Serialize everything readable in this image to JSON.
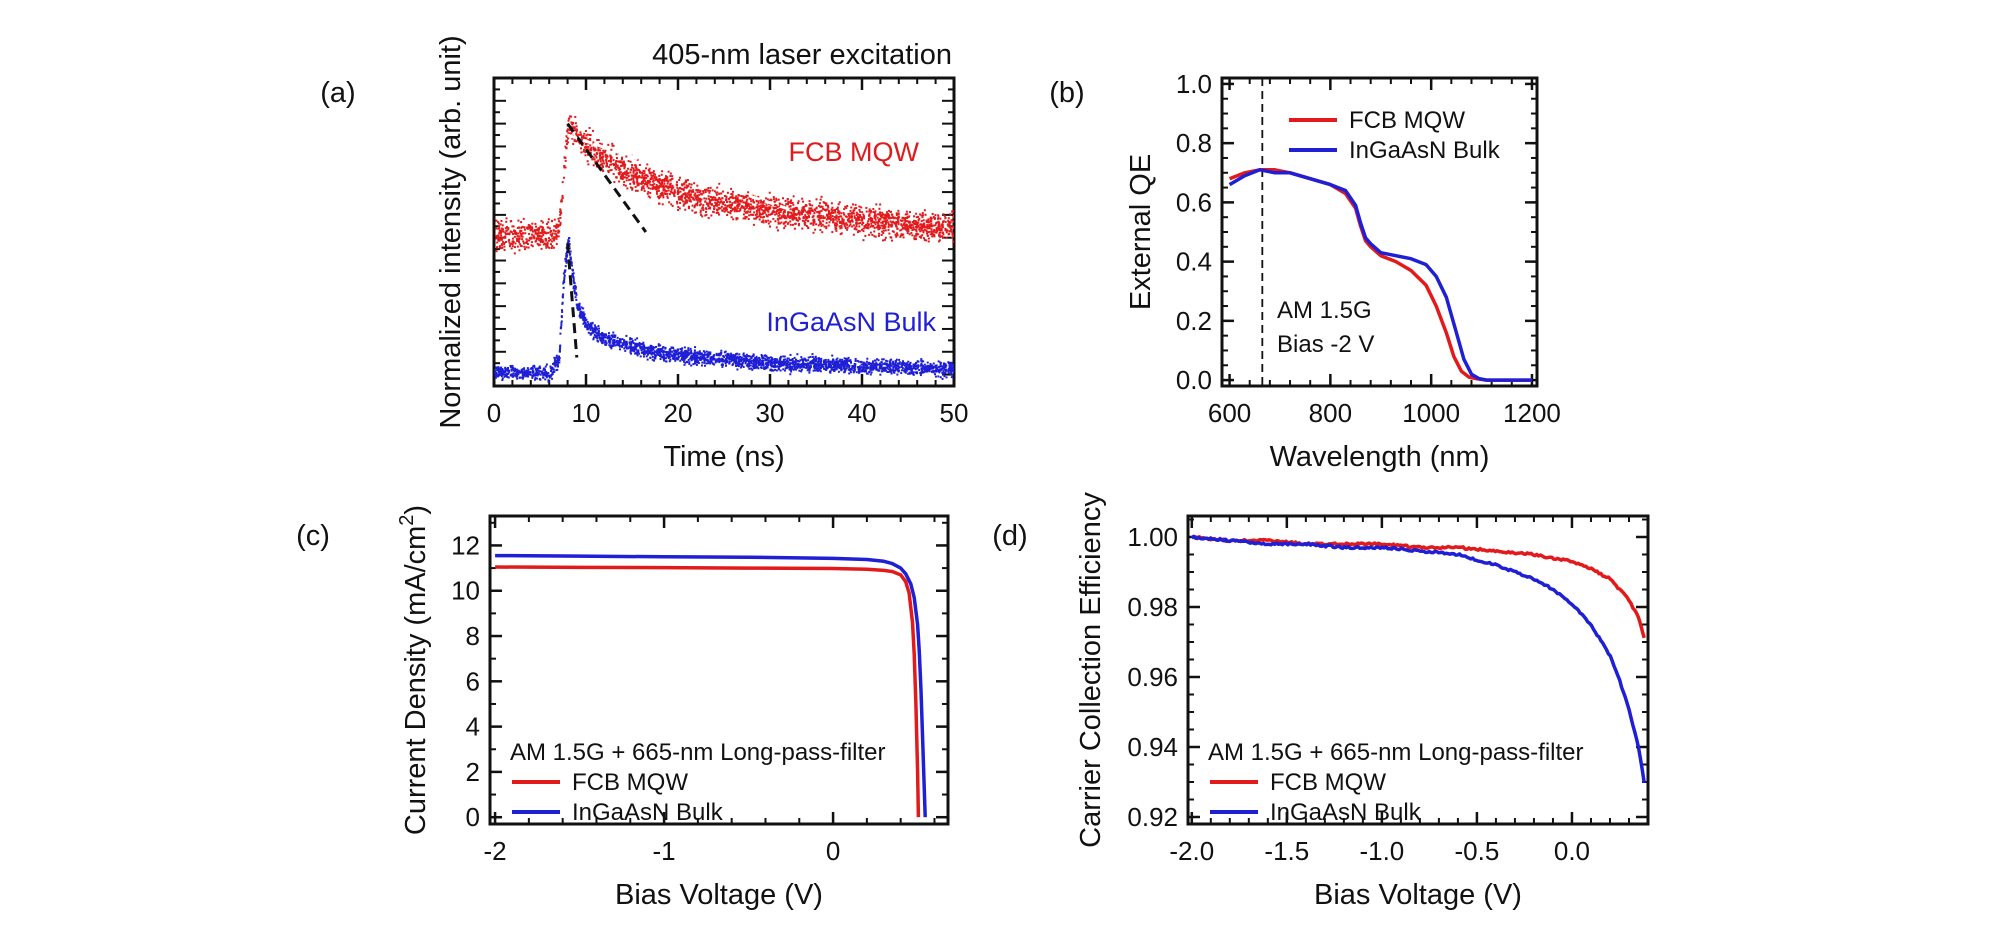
{
  "chart_data": [
    {
      "panel": "(a)",
      "type": "scatter",
      "title": "405-nm laser excitation",
      "xlabel": "Time (ns)",
      "ylabel": "Normalized intensity (arb. unit)",
      "xlim": [
        0,
        50
      ],
      "ylim": [
        0,
        1.08
      ],
      "xticks": [
        0,
        10,
        20,
        30,
        40,
        50
      ],
      "yticks_labeled": false,
      "grid": false,
      "series": [
        {
          "name": "FCB MQW",
          "color": "#e31a1c",
          "x": [
            0,
            2,
            4,
            6,
            7,
            7.5,
            8,
            8.5,
            9,
            10,
            11,
            12,
            14,
            16,
            18,
            20,
            22,
            24,
            26,
            28,
            30,
            32,
            35,
            38,
            41,
            44,
            47,
            50
          ],
          "y": [
            0.53,
            0.53,
            0.53,
            0.53,
            0.56,
            0.74,
            0.92,
            0.9,
            0.88,
            0.85,
            0.82,
            0.8,
            0.76,
            0.73,
            0.7,
            0.68,
            0.66,
            0.65,
            0.64,
            0.63,
            0.62,
            0.61,
            0.6,
            0.59,
            0.58,
            0.57,
            0.56,
            0.56
          ]
        },
        {
          "name": "InGaAsN Bulk",
          "color": "#1f1fd6",
          "x": [
            0,
            2,
            4,
            6,
            7,
            7.5,
            8,
            8.5,
            9,
            10,
            11,
            12,
            14,
            16,
            18,
            20,
            24,
            28,
            32,
            36,
            40,
            45,
            50
          ],
          "y": [
            0.05,
            0.05,
            0.05,
            0.05,
            0.1,
            0.38,
            0.52,
            0.38,
            0.28,
            0.22,
            0.19,
            0.17,
            0.15,
            0.13,
            0.12,
            0.11,
            0.1,
            0.09,
            0.08,
            0.08,
            0.07,
            0.07,
            0.06
          ]
        }
      ],
      "fits": [
        {
          "style": "dashed",
          "color": "#111111",
          "x": [
            8,
            16.5
          ],
          "y": [
            0.92,
            0.54
          ]
        },
        {
          "style": "dashed",
          "color": "#ffffff",
          "x": [
            8,
            33
          ],
          "y": [
            0.88,
            0.61
          ]
        },
        {
          "style": "dashed",
          "color": "#111111",
          "x": [
            8,
            9
          ],
          "y": [
            0.5,
            0.1
          ]
        }
      ]
    },
    {
      "panel": "(b)",
      "type": "line",
      "xlabel": "Wavelength (nm)",
      "ylabel": "External QE",
      "xlim": [
        585,
        1210
      ],
      "ylim": [
        -0.02,
        1.02
      ],
      "xticks": [
        600,
        800,
        1000,
        1200
      ],
      "yticks": [
        0.0,
        0.2,
        0.4,
        0.6,
        0.8,
        1.0
      ],
      "ytick_labels": [
        "0.0",
        "0.2",
        "0.4",
        "0.6",
        "0.8",
        "1.0"
      ],
      "grid": false,
      "legend": "top-right",
      "vline": 665,
      "annotations": [
        "AM 1.5G",
        "Bias -2 V"
      ],
      "series": [
        {
          "name": "FCB MQW",
          "color": "#e31a1c",
          "x": [
            600,
            630,
            660,
            690,
            720,
            760,
            800,
            830,
            850,
            860,
            870,
            880,
            900,
            930,
            960,
            990,
            1010,
            1030,
            1045,
            1060,
            1075,
            1090,
            1110,
            1150,
            1200
          ],
          "y": [
            0.68,
            0.7,
            0.71,
            0.71,
            0.7,
            0.68,
            0.66,
            0.63,
            0.58,
            0.52,
            0.47,
            0.45,
            0.42,
            0.4,
            0.37,
            0.32,
            0.25,
            0.16,
            0.08,
            0.03,
            0.01,
            0.005,
            0.0,
            0.0,
            0.0
          ]
        },
        {
          "name": "InGaAsN Bulk",
          "color": "#1f1fd6",
          "x": [
            600,
            630,
            660,
            690,
            720,
            760,
            800,
            830,
            850,
            860,
            870,
            880,
            900,
            930,
            960,
            990,
            1010,
            1030,
            1050,
            1065,
            1080,
            1095,
            1110,
            1150,
            1200
          ],
          "y": [
            0.66,
            0.69,
            0.71,
            0.7,
            0.7,
            0.68,
            0.66,
            0.64,
            0.59,
            0.53,
            0.48,
            0.46,
            0.43,
            0.42,
            0.41,
            0.39,
            0.35,
            0.28,
            0.16,
            0.07,
            0.02,
            0.005,
            0.0,
            0.0,
            0.0
          ]
        }
      ]
    },
    {
      "panel": "(c)",
      "type": "line",
      "xlabel": "Bias Voltage (V)",
      "ylabel": "Current Density (mA/cm",
      "ylabel_sup": "2",
      "ylabel_end": ")",
      "xlim": [
        -2.03,
        0.68
      ],
      "ylim": [
        -0.3,
        13.3
      ],
      "xticks": [
        -2,
        -1,
        0
      ],
      "yticks": [
        0,
        2,
        4,
        6,
        8,
        10,
        12
      ],
      "grid": false,
      "legend": "bottom-left",
      "legend_title": "AM 1.5G + 665-nm Long-pass-filter",
      "series": [
        {
          "name": "FCB MQW",
          "color": "#e31a1c",
          "x": [
            -2.0,
            -1.5,
            -1.0,
            -0.5,
            0.0,
            0.2,
            0.3,
            0.35,
            0.4,
            0.43,
            0.45,
            0.47,
            0.48,
            0.49,
            0.5,
            0.505
          ],
          "y": [
            11.05,
            11.03,
            11.02,
            11.0,
            10.98,
            10.95,
            10.9,
            10.85,
            10.7,
            10.4,
            9.9,
            8.6,
            7.2,
            5.0,
            2.0,
            0.0
          ]
        },
        {
          "name": "InGaAsN Bulk",
          "color": "#1f1fd6",
          "x": [
            -2.0,
            -1.5,
            -1.0,
            -0.5,
            0.0,
            0.2,
            0.3,
            0.35,
            0.4,
            0.43,
            0.46,
            0.48,
            0.5,
            0.51,
            0.52,
            0.53,
            0.54,
            0.545
          ],
          "y": [
            11.55,
            11.53,
            11.5,
            11.48,
            11.43,
            11.38,
            11.3,
            11.2,
            11.0,
            10.75,
            10.3,
            9.7,
            8.5,
            7.3,
            5.6,
            3.5,
            1.2,
            0.0
          ]
        }
      ]
    },
    {
      "panel": "(d)",
      "type": "line",
      "xlabel": "Bias Voltage (V)",
      "ylabel": "Carrier Collection Efficiency",
      "xlim": [
        -2.02,
        0.4
      ],
      "ylim": [
        0.918,
        1.006
      ],
      "xticks": [
        -2.0,
        -1.5,
        -1.0,
        -0.5,
        0.0
      ],
      "xtick_labels": [
        "-2.0",
        "-1.5",
        "-1.0",
        "-0.5",
        "0.0"
      ],
      "yticks": [
        0.92,
        0.94,
        0.96,
        0.98,
        1.0
      ],
      "ytick_labels": [
        "0.92",
        "0.94",
        "0.96",
        "0.98",
        "1.00"
      ],
      "grid": false,
      "legend": "bottom-left",
      "legend_title": "AM 1.5G + 665-nm Long-pass-filter",
      "series": [
        {
          "name": "FCB MQW",
          "color": "#e31a1c",
          "x": [
            -2.0,
            -1.8,
            -1.6,
            -1.4,
            -1.2,
            -1.0,
            -0.8,
            -0.6,
            -0.4,
            -0.2,
            0.0,
            0.1,
            0.2,
            0.25,
            0.3,
            0.35,
            0.38
          ],
          "y": [
            1.0,
            0.999,
            0.999,
            0.998,
            0.998,
            0.998,
            0.997,
            0.997,
            0.996,
            0.995,
            0.993,
            0.991,
            0.988,
            0.985,
            0.982,
            0.977,
            0.971
          ]
        },
        {
          "name": "InGaAsN Bulk",
          "color": "#1f1fd6",
          "x": [
            -2.0,
            -1.8,
            -1.6,
            -1.4,
            -1.2,
            -1.0,
            -0.8,
            -0.6,
            -0.4,
            -0.2,
            -0.1,
            0.0,
            0.1,
            0.2,
            0.25,
            0.3,
            0.35,
            0.38
          ],
          "y": [
            1.0,
            0.999,
            0.998,
            0.998,
            0.997,
            0.997,
            0.996,
            0.995,
            0.992,
            0.988,
            0.985,
            0.981,
            0.975,
            0.966,
            0.959,
            0.951,
            0.94,
            0.93
          ]
        }
      ]
    }
  ]
}
